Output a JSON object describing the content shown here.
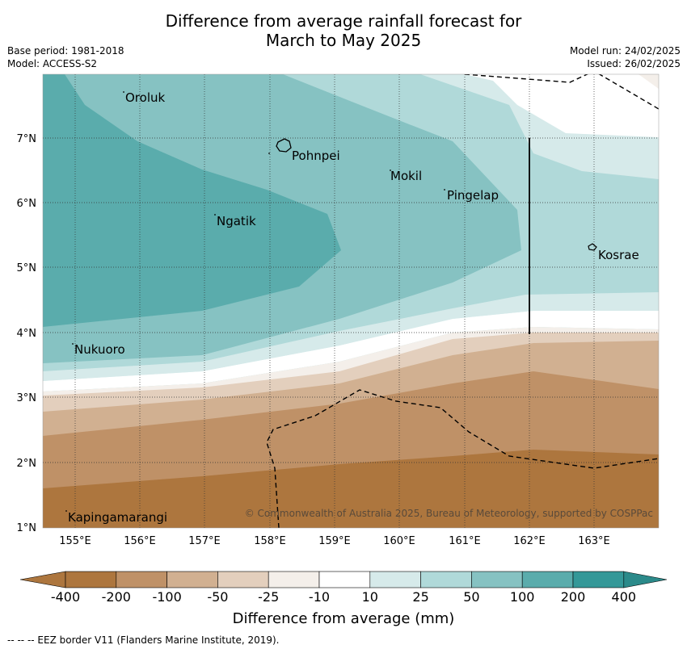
{
  "title": {
    "line1": "Difference from average rainfall forecast for",
    "line2": "March to May 2025"
  },
  "meta": {
    "base_period": "Base period: 1981-2018",
    "model": "Model: ACCESS-S2",
    "model_run": "Model run: 24/02/2025",
    "issued": "Issued: 26/02/2025"
  },
  "places": [
    "Oroluk",
    "Pohnpei",
    "Mokil",
    "Pingelap",
    "Ngatik",
    "Kosrae",
    "Nukuoro",
    "Kapingamarangi"
  ],
  "axes": {
    "lat_ticks": [
      "7°N",
      "6°N",
      "5°N",
      "4°N",
      "3°N",
      "2°N",
      "1°N"
    ],
    "lon_ticks": [
      "155°E",
      "156°E",
      "157°E",
      "158°E",
      "159°E",
      "160°E",
      "161°E",
      "162°E",
      "163°E"
    ]
  },
  "copyright": "© Commonwealth of Australia 2025, Bureau of Meteorology, supported by COSPPac",
  "colorbar": {
    "ticks": [
      "-400",
      "-200",
      "-100",
      "-50",
      "-25",
      "-10",
      "10",
      "25",
      "50",
      "100",
      "200",
      "400"
    ],
    "label": "Difference from average (mm)",
    "colors": [
      "#ad763e",
      "#bf9167",
      "#d1b091",
      "#e3cfbd",
      "#f4efea",
      "#ffffff",
      "#d6eaea",
      "#b0d9d9",
      "#86c2c2",
      "#5aacac",
      "#349898",
      "#2b8a8a"
    ]
  },
  "footer": "--  --  -- EEZ border V11 (Flanders Marine Institute, 2019)."
}
